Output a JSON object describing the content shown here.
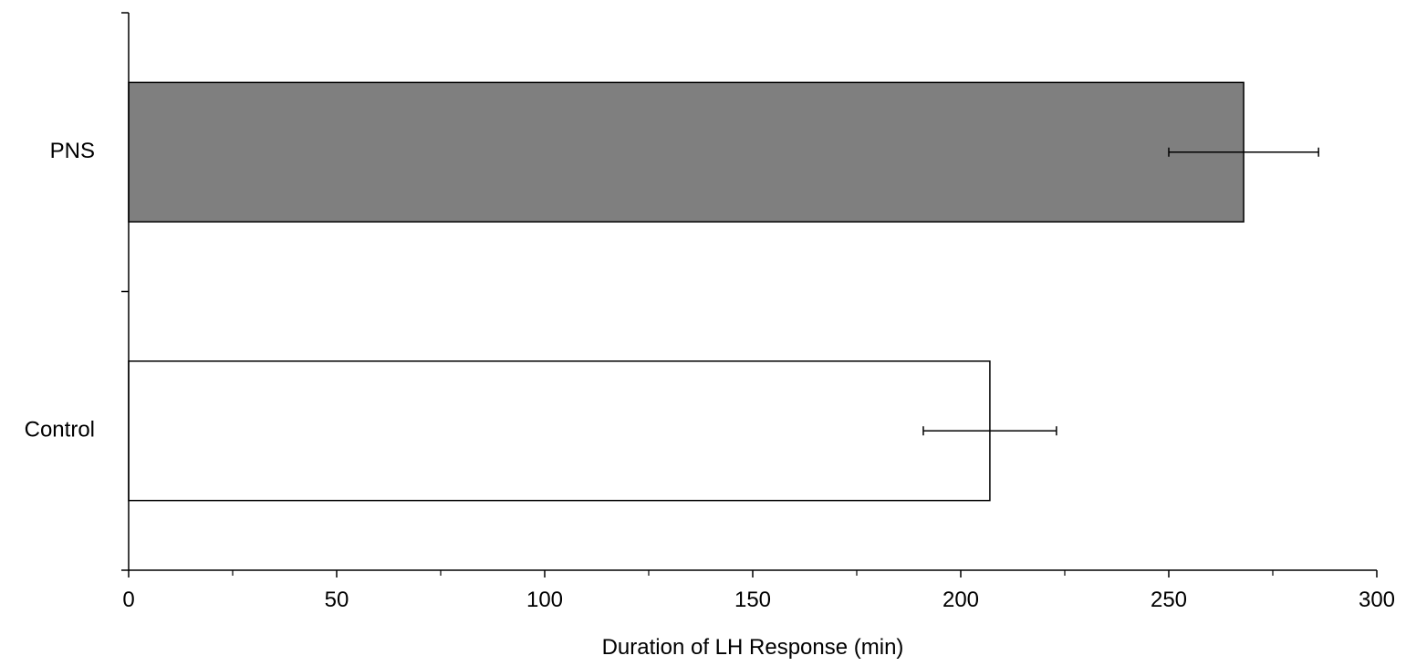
{
  "chart_data": {
    "type": "bar",
    "orientation": "horizontal",
    "categories": [
      "PNS",
      "Control"
    ],
    "values": [
      268,
      207
    ],
    "error": [
      18,
      16
    ],
    "bar_colors": [
      "#7f7f7f",
      "#ffffff"
    ],
    "xlabel": "Duration of LH Response (min)",
    "ylabel": "",
    "title": "",
    "xlim": [
      0,
      300
    ],
    "xticks": [
      "0",
      "50",
      "100",
      "150",
      "200",
      "250",
      "300"
    ],
    "grid": false,
    "legend": "none"
  }
}
